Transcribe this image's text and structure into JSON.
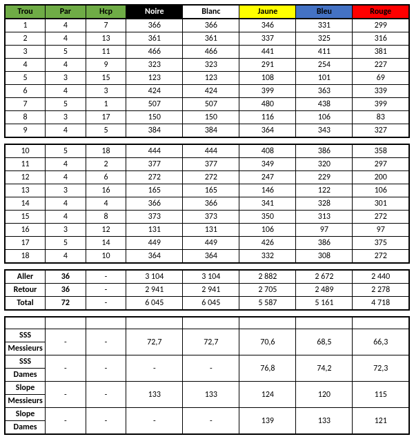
{
  "colors": {
    "green": "#6fac46",
    "black": "#000000",
    "white": "#ffffff",
    "yellow": "#ffff00",
    "blue": "#4472c4",
    "red": "#ff0000",
    "text_white": "#ffffff",
    "text_black": "#000000"
  },
  "headers": {
    "trou": "Trou",
    "par": "Par",
    "hcp": "Hcp",
    "noire": "Noire",
    "blanc": "Blanc",
    "jaune": "Jaune",
    "bleu": "Bleu",
    "rouge": "Rouge"
  },
  "holes_front": [
    {
      "n": "1",
      "par": "4",
      "hcp": "7",
      "noire": "366",
      "blanc": "366",
      "jaune": "346",
      "bleu": "331",
      "rouge": "299"
    },
    {
      "n": "2",
      "par": "4",
      "hcp": "13",
      "noire": "361",
      "blanc": "361",
      "jaune": "337",
      "bleu": "325",
      "rouge": "316"
    },
    {
      "n": "3",
      "par": "5",
      "hcp": "11",
      "noire": "466",
      "blanc": "466",
      "jaune": "441",
      "bleu": "411",
      "rouge": "381"
    },
    {
      "n": "4",
      "par": "4",
      "hcp": "9",
      "noire": "323",
      "blanc": "323",
      "jaune": "291",
      "bleu": "254",
      "rouge": "227"
    },
    {
      "n": "5",
      "par": "3",
      "hcp": "15",
      "noire": "123",
      "blanc": "123",
      "jaune": "108",
      "bleu": "101",
      "rouge": "69"
    },
    {
      "n": "6",
      "par": "4",
      "hcp": "3",
      "noire": "424",
      "blanc": "424",
      "jaune": "399",
      "bleu": "363",
      "rouge": "339"
    },
    {
      "n": "7",
      "par": "5",
      "hcp": "1",
      "noire": "507",
      "blanc": "507",
      "jaune": "480",
      "bleu": "438",
      "rouge": "399"
    },
    {
      "n": "8",
      "par": "3",
      "hcp": "17",
      "noire": "150",
      "blanc": "150",
      "jaune": "116",
      "bleu": "106",
      "rouge": "83"
    },
    {
      "n": "9",
      "par": "4",
      "hcp": "5",
      "noire": "384",
      "blanc": "384",
      "jaune": "364",
      "bleu": "343",
      "rouge": "327"
    }
  ],
  "holes_back": [
    {
      "n": "10",
      "par": "5",
      "hcp": "18",
      "noire": "444",
      "blanc": "444",
      "jaune": "408",
      "bleu": "386",
      "rouge": "358"
    },
    {
      "n": "11",
      "par": "4",
      "hcp": "2",
      "noire": "377",
      "blanc": "377",
      "jaune": "349",
      "bleu": "320",
      "rouge": "297"
    },
    {
      "n": "12",
      "par": "4",
      "hcp": "6",
      "noire": "272",
      "blanc": "272",
      "jaune": "247",
      "bleu": "229",
      "rouge": "200"
    },
    {
      "n": "13",
      "par": "3",
      "hcp": "16",
      "noire": "165",
      "blanc": "165",
      "jaune": "146",
      "bleu": "122",
      "rouge": "106"
    },
    {
      "n": "14",
      "par": "4",
      "hcp": "4",
      "noire": "366",
      "blanc": "366",
      "jaune": "341",
      "bleu": "328",
      "rouge": "301"
    },
    {
      "n": "15",
      "par": "4",
      "hcp": "8",
      "noire": "373",
      "blanc": "373",
      "jaune": "350",
      "bleu": "313",
      "rouge": "272"
    },
    {
      "n": "16",
      "par": "3",
      "hcp": "12",
      "noire": "131",
      "blanc": "131",
      "jaune": "106",
      "bleu": "97",
      "rouge": "97"
    },
    {
      "n": "17",
      "par": "5",
      "hcp": "14",
      "noire": "449",
      "blanc": "449",
      "jaune": "426",
      "bleu": "386",
      "rouge": "375"
    },
    {
      "n": "18",
      "par": "4",
      "hcp": "10",
      "noire": "364",
      "blanc": "364",
      "jaune": "332",
      "bleu": "308",
      "rouge": "272"
    }
  ],
  "totals": [
    {
      "label": "Aller",
      "par": "36",
      "hcp": "-",
      "noire": "3 104",
      "blanc": "3 104",
      "jaune": "2 882",
      "bleu": "2 672",
      "rouge": "2 440"
    },
    {
      "label": "Retour",
      "par": "36",
      "hcp": "-",
      "noire": "2 941",
      "blanc": "2 941",
      "jaune": "2 705",
      "bleu": "2 489",
      "rouge": "2 278"
    },
    {
      "label": "Total",
      "par": "72",
      "hcp": "-",
      "noire": "6 045",
      "blanc": "6 045",
      "jaune": "5 587",
      "bleu": "5 161",
      "rouge": "4 718"
    }
  ],
  "ratings": {
    "sss_m": {
      "l1": "SSS",
      "l2": "Messieurs",
      "par": "-",
      "hcp": "-",
      "noire": "72,7",
      "blanc": "72,7",
      "jaune": "70,6",
      "bleu": "68,5",
      "rouge": "66,3"
    },
    "sss_d": {
      "l1": "SSS",
      "l2": "Dames",
      "par": "-",
      "hcp": "-",
      "noire": "-",
      "blanc": "-",
      "jaune": "76,8",
      "bleu": "74,2",
      "rouge": "72,3"
    },
    "slope_m": {
      "l1": "Slope",
      "l2": "Messieurs",
      "par": "-",
      "hcp": "-",
      "noire": "133",
      "blanc": "133",
      "jaune": "124",
      "bleu": "120",
      "rouge": "115"
    },
    "slope_d": {
      "l1": "Slope",
      "l2": "Dames",
      "par": "-",
      "hcp": "-",
      "noire": "-",
      "blanc": "-",
      "jaune": "139",
      "bleu": "133",
      "rouge": "121"
    }
  }
}
